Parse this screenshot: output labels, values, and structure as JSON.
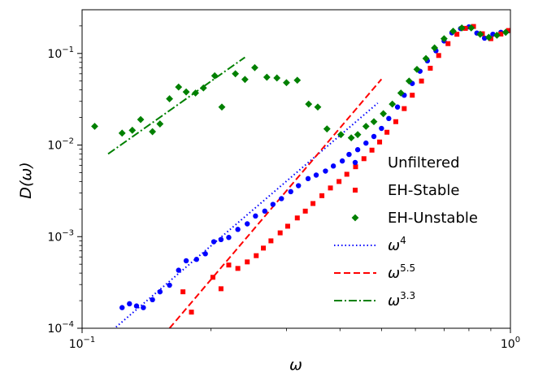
{
  "chart_data": {
    "type": "scatter",
    "title": "",
    "xlabel": "ω",
    "ylabel": "D(ω)",
    "xscale": "log",
    "yscale": "log",
    "xlim": [
      0.1,
      1.0
    ],
    "ylim": [
      0.0001,
      0.3
    ],
    "grid": false,
    "legend_position": "center-right",
    "x_ticks": [
      {
        "value": 0.1,
        "base": "10",
        "exp": "−1"
      },
      {
        "value": 1.0,
        "base": "10",
        "exp": "0"
      }
    ],
    "y_ticks": [
      {
        "value": 0.0001,
        "base": "10",
        "exp": "−4"
      },
      {
        "value": 0.001,
        "base": "10",
        "exp": "−3"
      },
      {
        "value": 0.01,
        "base": "10",
        "exp": "−2"
      },
      {
        "value": 0.1,
        "base": "10",
        "exp": "−1"
      }
    ],
    "series": [
      {
        "name": "Unfiltered",
        "marker": "circle",
        "color": "#0000ff",
        "points": [
          [
            0.124,
            0.000168
          ],
          [
            0.129,
            0.000185
          ],
          [
            0.134,
            0.000175
          ],
          [
            0.139,
            0.000168
          ],
          [
            0.146,
            0.000205
          ],
          [
            0.152,
            0.00025
          ],
          [
            0.16,
            0.000295
          ],
          [
            0.168,
            0.00043
          ],
          [
            0.175,
            0.000545
          ],
          [
            0.185,
            0.000565
          ],
          [
            0.194,
            0.00065
          ],
          [
            0.203,
            0.00088
          ],
          [
            0.211,
            0.00093
          ],
          [
            0.22,
            0.00098
          ],
          [
            0.231,
            0.0012
          ],
          [
            0.243,
            0.00138
          ],
          [
            0.254,
            0.00168
          ],
          [
            0.267,
            0.0019
          ],
          [
            0.279,
            0.00225
          ],
          [
            0.292,
            0.0026
          ],
          [
            0.307,
            0.0031
          ],
          [
            0.32,
            0.0036
          ],
          [
            0.337,
            0.0043
          ],
          [
            0.352,
            0.0047
          ],
          [
            0.37,
            0.0052
          ],
          [
            0.386,
            0.0059
          ],
          [
            0.405,
            0.0067
          ],
          [
            0.42,
            0.0079
          ],
          [
            0.44,
            0.0089
          ],
          [
            0.46,
            0.0105
          ],
          [
            0.48,
            0.0124
          ],
          [
            0.5,
            0.0152
          ],
          [
            0.52,
            0.0195
          ],
          [
            0.545,
            0.026
          ],
          [
            0.565,
            0.035
          ],
          [
            0.59,
            0.047
          ],
          [
            0.615,
            0.064
          ],
          [
            0.64,
            0.083
          ],
          [
            0.67,
            0.107
          ],
          [
            0.7,
            0.137
          ],
          [
            0.73,
            0.168
          ],
          [
            0.765,
            0.187
          ],
          [
            0.8,
            0.195
          ],
          [
            0.835,
            0.167
          ],
          [
            0.87,
            0.147
          ],
          [
            0.91,
            0.162
          ],
          [
            0.95,
            0.17
          ],
          [
            0.99,
            0.177
          ]
        ]
      },
      {
        "name": "EH-Stable",
        "marker": "square",
        "color": "#ff0000",
        "points": [
          [
            0.172,
            0.00025
          ],
          [
            0.18,
            0.00015
          ],
          [
            0.202,
            0.00036
          ],
          [
            0.211,
            0.00027
          ],
          [
            0.22,
            0.00049
          ],
          [
            0.231,
            0.00045
          ],
          [
            0.243,
            0.00053
          ],
          [
            0.255,
            0.00062
          ],
          [
            0.265,
            0.00075
          ],
          [
            0.276,
            0.0009
          ],
          [
            0.29,
            0.0011
          ],
          [
            0.302,
            0.0013
          ],
          [
            0.318,
            0.0016
          ],
          [
            0.332,
            0.0019
          ],
          [
            0.346,
            0.0023
          ],
          [
            0.363,
            0.0028
          ],
          [
            0.38,
            0.0034
          ],
          [
            0.398,
            0.004
          ],
          [
            0.415,
            0.0048
          ],
          [
            0.435,
            0.0058
          ],
          [
            0.455,
            0.0071
          ],
          [
            0.475,
            0.0088
          ],
          [
            0.495,
            0.0108
          ],
          [
            0.515,
            0.0138
          ],
          [
            0.54,
            0.018
          ],
          [
            0.565,
            0.025
          ],
          [
            0.59,
            0.035
          ],
          [
            0.62,
            0.05
          ],
          [
            0.65,
            0.069
          ],
          [
            0.68,
            0.095
          ],
          [
            0.715,
            0.128
          ],
          [
            0.75,
            0.162
          ],
          [
            0.785,
            0.188
          ],
          [
            0.82,
            0.197
          ],
          [
            0.86,
            0.164
          ],
          [
            0.9,
            0.145
          ],
          [
            0.95,
            0.163
          ],
          [
            0.99,
            0.178
          ]
        ]
      },
      {
        "name": "EH-Unstable",
        "marker": "diamond",
        "color": "#008000",
        "points": [
          [
            0.107,
            0.016
          ],
          [
            0.124,
            0.0135
          ],
          [
            0.131,
            0.0145
          ],
          [
            0.137,
            0.019
          ],
          [
            0.146,
            0.014
          ],
          [
            0.152,
            0.017
          ],
          [
            0.16,
            0.032
          ],
          [
            0.168,
            0.043
          ],
          [
            0.175,
            0.038
          ],
          [
            0.184,
            0.037
          ],
          [
            0.192,
            0.042
          ],
          [
            0.204,
            0.057
          ],
          [
            0.212,
            0.026
          ],
          [
            0.228,
            0.06
          ],
          [
            0.24,
            0.052
          ],
          [
            0.253,
            0.07
          ],
          [
            0.27,
            0.055
          ],
          [
            0.285,
            0.054
          ],
          [
            0.3,
            0.048
          ],
          [
            0.318,
            0.051
          ],
          [
            0.338,
            0.028
          ],
          [
            0.355,
            0.026
          ],
          [
            0.373,
            0.015
          ],
          [
            0.402,
            0.013
          ],
          [
            0.425,
            0.012
          ],
          [
            0.44,
            0.013
          ],
          [
            0.46,
            0.016
          ],
          [
            0.48,
            0.018
          ],
          [
            0.505,
            0.022
          ],
          [
            0.53,
            0.028
          ],
          [
            0.555,
            0.037
          ],
          [
            0.58,
            0.05
          ],
          [
            0.605,
            0.067
          ],
          [
            0.635,
            0.088
          ],
          [
            0.665,
            0.115
          ],
          [
            0.7,
            0.145
          ],
          [
            0.735,
            0.175
          ],
          [
            0.77,
            0.19
          ],
          [
            0.81,
            0.19
          ],
          [
            0.85,
            0.162
          ],
          [
            0.89,
            0.15
          ],
          [
            0.93,
            0.158
          ],
          [
            0.975,
            0.17
          ]
        ]
      }
    ],
    "lines": [
      {
        "name": "ω",
        "sup": "4",
        "style": "dotted",
        "color": "#0000ff",
        "x": [
          0.12,
          0.49
        ],
        "y": [
          0.000103,
          0.0287
        ]
      },
      {
        "name": "ω",
        "sup": "5.5",
        "style": "dashed",
        "color": "#ff0000",
        "x": [
          0.16,
          0.5
        ],
        "y": [
          0.0001,
          0.0524
        ]
      },
      {
        "name": "ω",
        "sup": "3.3",
        "style": "dashdot",
        "color": "#008000",
        "x": [
          0.115,
          0.24
        ],
        "y": [
          0.008,
          0.0908
        ]
      }
    ]
  }
}
